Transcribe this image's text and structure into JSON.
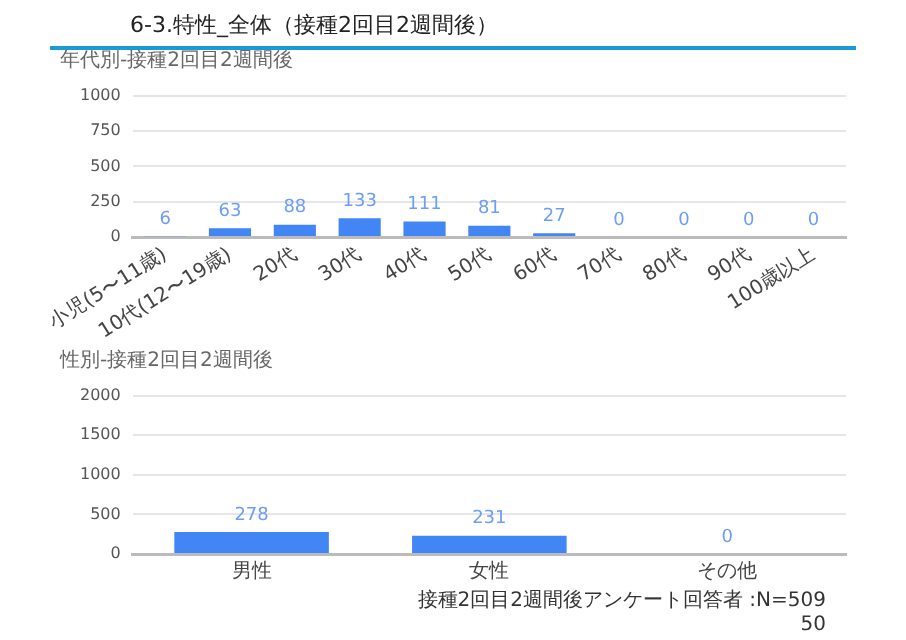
{
  "chart_data": [
    {
      "type": "bar",
      "title": "年代別-接種2回目2週間後",
      "annotations": [
        "6-3.特性_全体（接種2回目2週間後）"
      ],
      "categories": [
        "小児(5〜11歳)",
        "10代(12〜19歳)",
        "20代",
        "30代",
        "40代",
        "50代",
        "60代",
        "70代",
        "80代",
        "90代",
        "100歳以上"
      ],
      "values": [
        6,
        63,
        88,
        133,
        111,
        81,
        27,
        0,
        0,
        0,
        0
      ],
      "color": "#4285f4",
      "ylim": [
        0,
        1000
      ],
      "yticks": [
        0,
        250,
        500,
        750,
        1000
      ],
      "grid": "y",
      "data_labels": true
    },
    {
      "type": "bar",
      "title": "性別-接種2回目2週間後",
      "annotations": [
        "接種2回目2週間後アンケート回答者 :N=509",
        "50"
      ],
      "categories": [
        "男性",
        "女性",
        "その他"
      ],
      "values": [
        278,
        231,
        0
      ],
      "color": "#4285f4",
      "ylim": [
        0,
        2000
      ],
      "yticks": [
        0,
        500,
        1000,
        1500,
        2000
      ],
      "grid": "y",
      "data_labels": true
    }
  ]
}
